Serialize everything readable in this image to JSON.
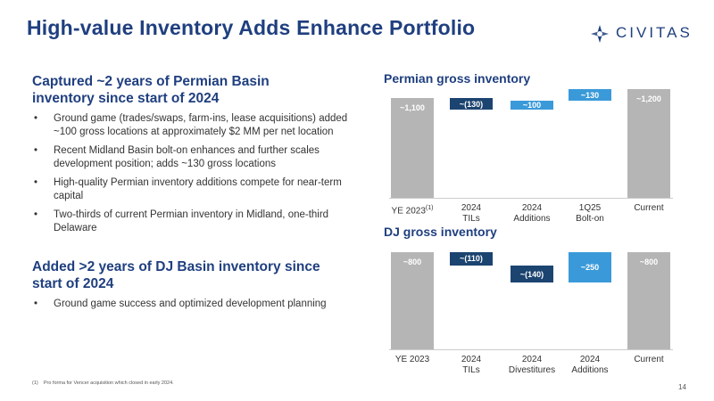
{
  "header": {
    "title": "High-value Inventory Adds Enhance Portfolio",
    "logo": "CIVITAS"
  },
  "sections": [
    {
      "heading": "Captured ~2 years of Permian Basin inventory since start of 2024",
      "bullets": [
        "Ground game (trades/swaps, farm-ins, lease acquisitions) added ~100 gross locations at approximately $2 MM per net location",
        "Recent Midland Basin bolt-on enhances and further scales development position; adds ~130 gross locations",
        "High-quality Permian inventory additions compete for near-term capital",
        "Two-thirds of current Permian inventory in Midland, one-third Delaware"
      ]
    },
    {
      "heading": "Added >2 years of DJ Basin inventory since start of 2024",
      "bullets": [
        "Ground game success and optimized development planning"
      ]
    }
  ],
  "footnote": {
    "marker": "(1)",
    "text": "Pro forma for Vencer acquisition which closed in early 2024."
  },
  "page_number": "14",
  "chart_data": [
    {
      "type": "waterfall",
      "title": "Permian gross inventory",
      "categories": [
        "YE 2023",
        "2024\nTILs",
        "2024\nAdditions",
        "1Q25\nBolt-on",
        "Current"
      ],
      "category_note": "(1)",
      "values": [
        1100,
        -130,
        100,
        130,
        1200
      ],
      "value_labels": [
        "~1,100",
        "~(130)",
        "~100",
        "~130",
        "~1,200"
      ],
      "colors": {
        "total": "#b5b5b5",
        "decrease": "#1c4470",
        "increase": "#3a9ad9"
      }
    },
    {
      "type": "waterfall",
      "title": "DJ gross inventory",
      "categories": [
        "YE 2023",
        "2024\nTILs",
        "2024\nDivestitures",
        "2024\nAdditions",
        "Current"
      ],
      "values": [
        800,
        -110,
        -140,
        250,
        800
      ],
      "value_labels": [
        "~800",
        "~(110)",
        "~(140)",
        "~250",
        "~800"
      ],
      "colors": {
        "total": "#b5b5b5",
        "decrease": "#1c4470",
        "increase": "#3a9ad9"
      }
    }
  ]
}
